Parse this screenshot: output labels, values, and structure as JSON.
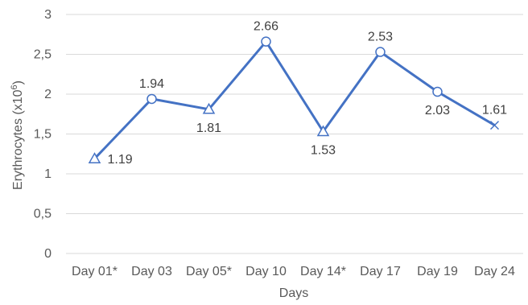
{
  "chart_data": {
    "type": "line",
    "title": "",
    "xlabel": "Days",
    "ylabel_main": "Erythrocytes (x10",
    "ylabel_sup": "6",
    "ylabel_end": ")",
    "ylim": [
      0,
      3
    ],
    "yticks": [
      "0",
      "0,5",
      "1",
      "1,5",
      "2",
      "2,5",
      "3"
    ],
    "grid": true,
    "categories": [
      "Day 01*",
      "Day 03",
      "Day 05*",
      "Day 10",
      "Day 14*",
      "Day 17",
      "Day 19",
      "Day 24"
    ],
    "series": [
      {
        "values": [
          1.19,
          1.94,
          1.81,
          2.66,
          1.53,
          2.53,
          2.03,
          1.61
        ],
        "markers": [
          "triangle",
          "circle",
          "triangle",
          "circle",
          "triangle",
          "circle",
          "circle",
          "x"
        ],
        "data_labels": [
          "1.19",
          "1.94",
          "1.81",
          "2.66",
          "1.53",
          "2.53",
          "2.03",
          "1.61"
        ],
        "label_positions": [
          "right",
          "above",
          "below",
          "above",
          "below",
          "above",
          "below",
          "above"
        ],
        "color": "#4472c4"
      }
    ]
  }
}
